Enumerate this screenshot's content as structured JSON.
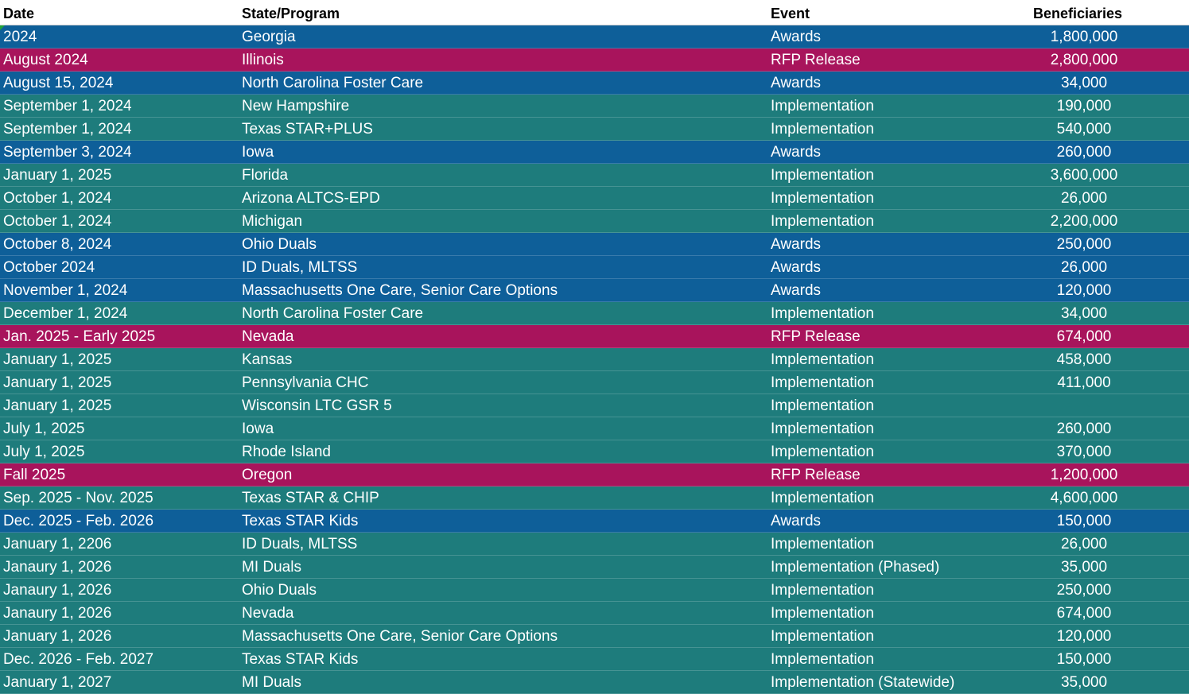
{
  "headers": {
    "date": "Date",
    "state": "State/Program",
    "event": "Event",
    "beneficiaries": "Beneficiaries"
  },
  "colors": {
    "awards": "#0e5f99",
    "rfp_release": "#a8145c",
    "implementation": "#1e7c7c"
  },
  "rows": [
    {
      "date": "2024",
      "state": "Georgia",
      "event": "Awards",
      "beneficiaries": "1,800,000",
      "kind": "awards"
    },
    {
      "date": "August 2024",
      "state": "Illinois",
      "event": "RFP Release",
      "beneficiaries": "2,800,000",
      "kind": "rfp"
    },
    {
      "date": "August 15, 2024",
      "state": "North Carolina Foster Care",
      "event": "Awards",
      "beneficiaries": "34,000",
      "kind": "awards"
    },
    {
      "date": "September 1, 2024",
      "state": "New Hampshire",
      "event": "Implementation",
      "beneficiaries": "190,000",
      "kind": "impl"
    },
    {
      "date": "September 1, 2024",
      "state": "Texas STAR+PLUS",
      "event": "Implementation",
      "beneficiaries": "540,000",
      "kind": "impl"
    },
    {
      "date": "September 3, 2024",
      "state": "Iowa",
      "event": "Awards",
      "beneficiaries": "260,000",
      "kind": "awards"
    },
    {
      "date": "January 1, 2025",
      "state": "Florida",
      "event": "Implementation",
      "beneficiaries": "3,600,000",
      "kind": "impl"
    },
    {
      "date": "October 1, 2024",
      "state": "Arizona ALTCS-EPD",
      "event": "Implementation",
      "beneficiaries": "26,000",
      "kind": "impl"
    },
    {
      "date": "October 1, 2024",
      "state": "Michigan",
      "event": "Implementation",
      "beneficiaries": "2,200,000",
      "kind": "impl"
    },
    {
      "date": "October 8, 2024",
      "state": "Ohio Duals",
      "event": "Awards",
      "beneficiaries": "250,000",
      "kind": "awards"
    },
    {
      "date": "October 2024",
      "state": "ID Duals, MLTSS",
      "event": "Awards",
      "beneficiaries": "26,000",
      "kind": "awards"
    },
    {
      "date": "November 1, 2024",
      "state": "Massachusetts One Care, Senior Care Options",
      "event": "Awards",
      "beneficiaries": "120,000",
      "kind": "awards"
    },
    {
      "date": "December 1, 2024",
      "state": "North Carolina Foster Care",
      "event": "Implementation",
      "beneficiaries": "34,000",
      "kind": "impl"
    },
    {
      "date": "Jan. 2025 - Early 2025",
      "state": "Nevada",
      "event": "RFP Release",
      "beneficiaries": "674,000",
      "kind": "rfp"
    },
    {
      "date": "January 1, 2025",
      "state": "Kansas",
      "event": "Implementation",
      "beneficiaries": "458,000",
      "kind": "impl"
    },
    {
      "date": "January 1, 2025",
      "state": "Pennsylvania CHC",
      "event": "Implementation",
      "beneficiaries": "411,000",
      "kind": "impl"
    },
    {
      "date": "January 1, 2025",
      "state": "Wisconsin LTC GSR 5",
      "event": "Implementation",
      "beneficiaries": "",
      "kind": "impl"
    },
    {
      "date": "July 1, 2025",
      "state": "Iowa",
      "event": "Implementation",
      "beneficiaries": "260,000",
      "kind": "impl"
    },
    {
      "date": "July 1, 2025",
      "state": "Rhode Island",
      "event": "Implementation",
      "beneficiaries": "370,000",
      "kind": "impl"
    },
    {
      "date": "Fall 2025",
      "state": "Oregon",
      "event": "RFP Release",
      "beneficiaries": "1,200,000",
      "kind": "rfp"
    },
    {
      "date": "Sep. 2025 - Nov. 2025",
      "state": "Texas STAR & CHIP",
      "event": "Implementation",
      "beneficiaries": "4,600,000",
      "kind": "impl"
    },
    {
      "date": "Dec. 2025 - Feb. 2026",
      "state": "Texas STAR Kids",
      "event": "Awards",
      "beneficiaries": "150,000",
      "kind": "awards"
    },
    {
      "date": "January 1, 2206",
      "state": "ID Duals, MLTSS",
      "event": "Implementation",
      "beneficiaries": "26,000",
      "kind": "impl"
    },
    {
      "date": "Janaury 1, 2026",
      "state": "MI Duals",
      "event": "Implementation (Phased)",
      "beneficiaries": "35,000",
      "kind": "impl"
    },
    {
      "date": "Janaury 1, 2026",
      "state": "Ohio Duals",
      "event": "Implementation",
      "beneficiaries": "250,000",
      "kind": "impl"
    },
    {
      "date": "Janaury 1, 2026",
      "state": "Nevada",
      "event": "Implementation",
      "beneficiaries": "674,000",
      "kind": "impl"
    },
    {
      "date": "January 1, 2026",
      "state": "Massachusetts One Care, Senior Care Options",
      "event": "Implementation",
      "beneficiaries": "120,000",
      "kind": "impl"
    },
    {
      "date": "Dec. 2026 - Feb. 2027",
      "state": "Texas STAR Kids",
      "event": "Implementation",
      "beneficiaries": "150,000",
      "kind": "impl"
    },
    {
      "date": "January 1, 2027",
      "state": "MI Duals",
      "event": "Implementation (Statewide)",
      "beneficiaries": "35,000",
      "kind": "impl"
    }
  ]
}
